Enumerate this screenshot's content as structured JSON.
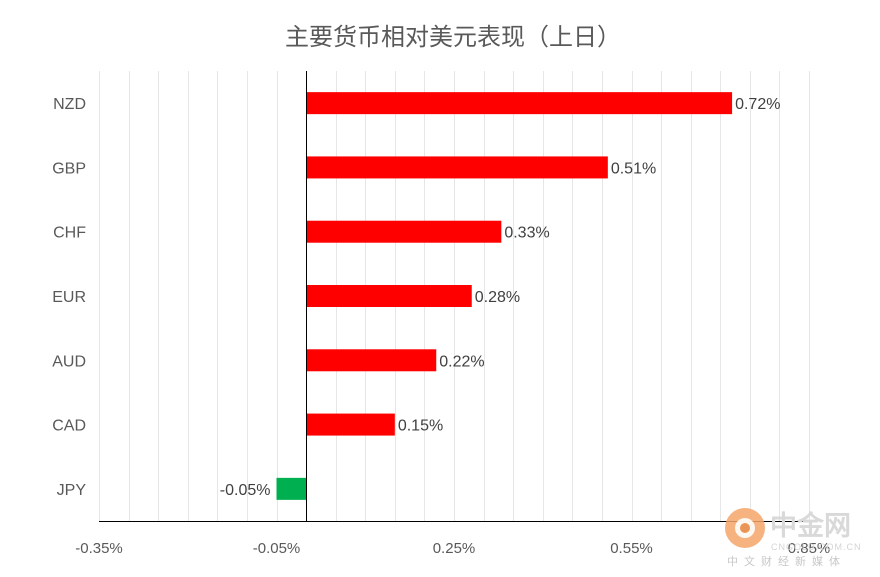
{
  "chart_data": {
    "type": "bar",
    "orientation": "horizontal",
    "title": "主要货币相对美元表现（上日）",
    "categories": [
      "NZD",
      "GBP",
      "CHF",
      "EUR",
      "AUD",
      "CAD",
      "JPY"
    ],
    "values": [
      0.72,
      0.51,
      0.33,
      0.28,
      0.22,
      0.15,
      -0.05
    ],
    "data_labels": [
      "0.72%",
      "0.51%",
      "0.33%",
      "0.28%",
      "0.22%",
      "0.15%",
      "-0.05%"
    ],
    "x_ticks": [
      -0.35,
      -0.05,
      0.25,
      0.55,
      0.85
    ],
    "x_tick_labels": [
      "-0.35%",
      "-0.05%",
      "0.25%",
      "0.55%",
      "0.85%"
    ],
    "xlim": [
      -0.35,
      0.85
    ],
    "grid": "vertical",
    "positive_color": "#ff0000",
    "negative_color": "#00b050"
  },
  "watermark": {
    "logo_text": "中金网",
    "url_text": "CNGOLD.COM.CN",
    "sub_text": "中文财经新媒体"
  }
}
